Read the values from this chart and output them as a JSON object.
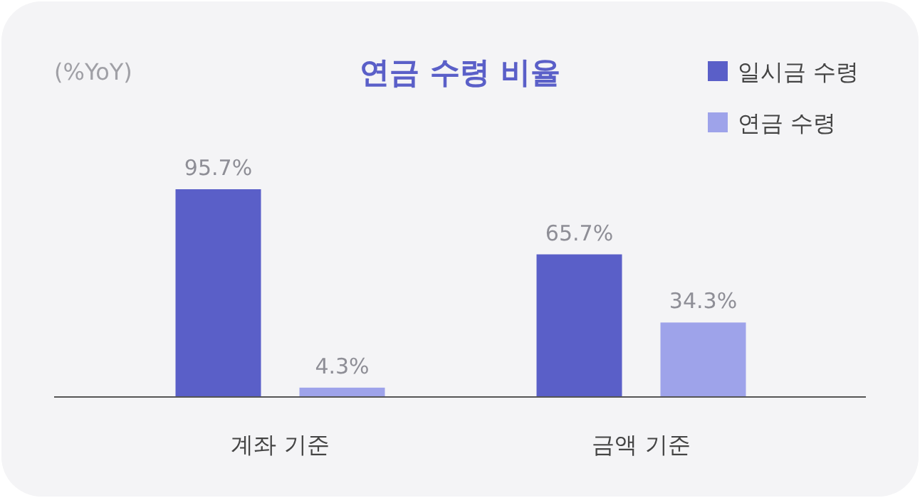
{
  "chart_data": {
    "type": "bar",
    "title": "연금 수령 비율",
    "ylabel": "(%YoY)",
    "categories": [
      "계좌 기준",
      "금액 기준"
    ],
    "series": [
      {
        "name": "일시금 수령",
        "color": "#5a5fc8",
        "values": [
          95.7,
          65.7
        ],
        "value_labels": [
          "95.7%",
          "65.7%"
        ]
      },
      {
        "name": "연금 수령",
        "color": "#9ea3ea",
        "values": [
          4.3,
          34.3
        ],
        "value_labels": [
          "4.3%",
          "34.3%"
        ]
      }
    ],
    "legend": "top right"
  }
}
